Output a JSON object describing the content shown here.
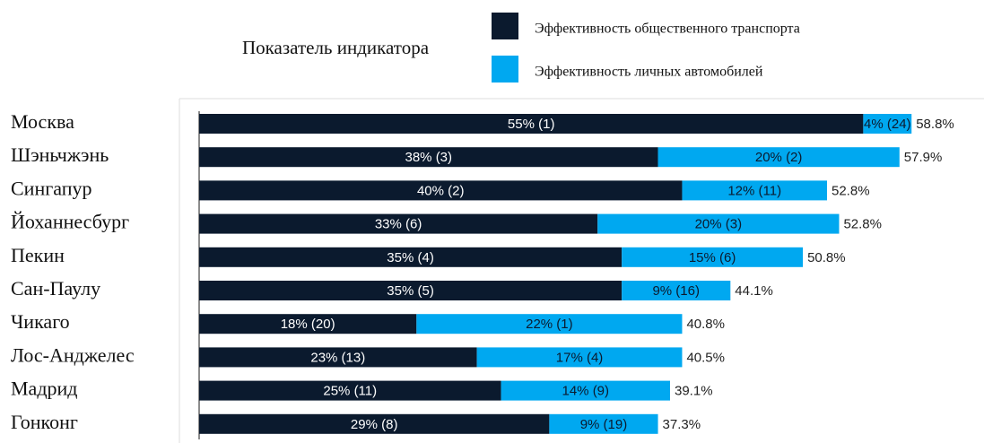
{
  "chart_data": {
    "type": "stacked-bar-horizontal",
    "legend_title": "Показатель индикатора",
    "categories": [
      "Москва",
      "Шэньчжэнь",
      "Сингапур",
      "Йоханнесбург",
      "Пекин",
      "Сан-Паулу",
      "Чикаго",
      "Лос-Анджелес",
      "Мадрид",
      "Гонконг"
    ],
    "series": [
      {
        "name": "Эффективность общественного транспорта",
        "color": "#0b1a2e",
        "values": [
          55,
          38,
          40,
          33,
          35,
          35,
          18,
          23,
          25,
          29
        ],
        "value_labels": [
          "55% (1)",
          "38% (3)",
          "40% (2)",
          "33% (6)",
          "35% (4)",
          "35% (5)",
          "18% (20)",
          "23% (13)",
          "25% (11)",
          "29% (8)"
        ]
      },
      {
        "name": "Эффективность личных автомобилей",
        "color": "#00a8f0",
        "values": [
          4,
          20,
          12,
          20,
          15,
          9,
          22,
          17,
          14,
          9
        ],
        "value_labels": [
          "4% (24)",
          "20% (2)",
          "12% (11)",
          "20% (3)",
          "15% (6)",
          "9% (16)",
          "22% (1)",
          "17% (4)",
          "14% (9)",
          "9% (19)"
        ]
      }
    ],
    "totals": {
      "values": [
        58.8,
        57.9,
        52.8,
        52.8,
        50.8,
        44.1,
        40.8,
        40.5,
        39.1,
        37.3
      ],
      "value_labels": [
        "58.8%",
        "57.9%",
        "52.8%",
        "52.8%",
        "50.8%",
        "44.1%",
        "40.8%",
        "40.5%",
        "39.1%",
        "37.3%"
      ]
    },
    "xlim": [
      0,
      65
    ]
  }
}
